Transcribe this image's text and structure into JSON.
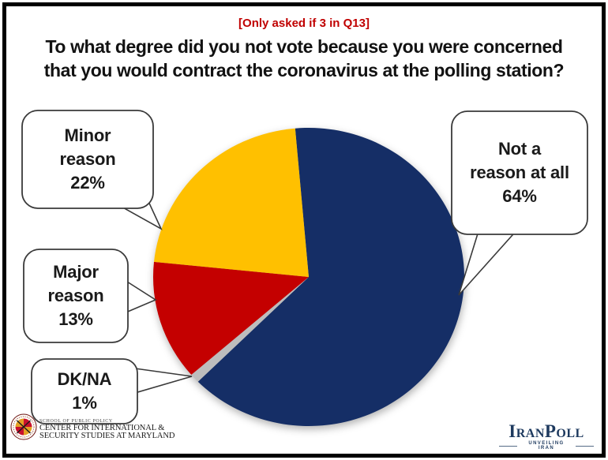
{
  "header": {
    "condition_note": "[Only asked if 3 in Q13]",
    "title_line1": "To what degree did you not vote because you were concerned",
    "title_line2": "that you would contract the coronavirus at the polling station?"
  },
  "chart_data": {
    "type": "pie",
    "note": "[Only asked if 3 in Q13]",
    "title": "To what degree did you not vote because you were concerned that you would contract the coronavirus at the polling station?",
    "units": "percent",
    "start_angle_deg": -5,
    "direction": "clockwise",
    "legend_position": "callouts",
    "slices": [
      {
        "label": "Not a reason at all",
        "value": 64,
        "color": "#152E66"
      },
      {
        "label": "DK/NA",
        "value": 1,
        "color": "#BDBDBD"
      },
      {
        "label": "Major reason",
        "value": 13,
        "color": "#C40000"
      },
      {
        "label": "Minor reason",
        "value": 22,
        "color": "#FFC000"
      }
    ]
  },
  "callouts": [
    {
      "id": "minor-reason",
      "lines": [
        "Minor",
        "reason",
        "22%"
      ]
    },
    {
      "id": "not-a-reason-at-all",
      "lines": [
        "Not a",
        "reason at all",
        "64%"
      ]
    },
    {
      "id": "major-reason",
      "lines": [
        "Major",
        "reason",
        "13%"
      ]
    },
    {
      "id": "dk-na",
      "lines": [
        "DK/NA",
        "1%"
      ]
    }
  ],
  "footer": {
    "umd": {
      "line1": "SCHOOL OF PUBLIC POLICY",
      "line2": "CENTER FOR INTERNATIONAL &",
      "line3": "SECURITY STUDIES AT MARYLAND"
    },
    "iranpoll": {
      "name": "IranPoll",
      "tagline": "UNVEILING IRAN"
    }
  },
  "colors": {
    "note_red": "#C00000",
    "iranpoll_navy": "#1E3A5F",
    "callout_border": "#3A3A3A"
  }
}
